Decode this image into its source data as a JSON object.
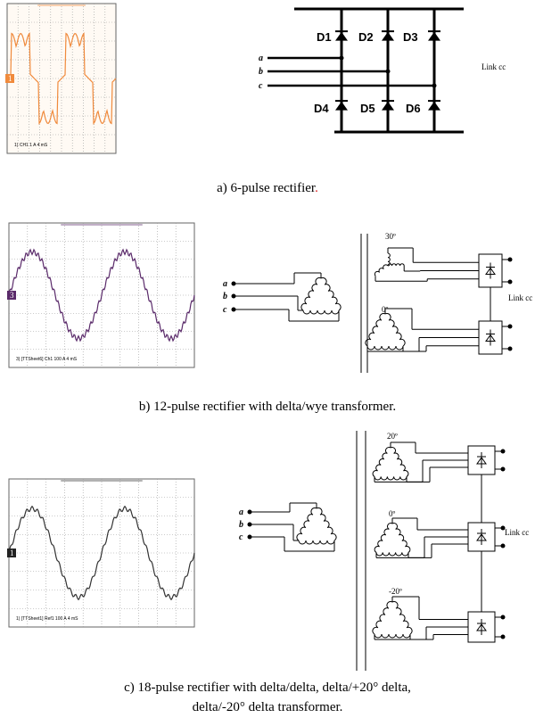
{
  "figure": {
    "panels": [
      {
        "caption": "a) 6-pulse rectifier",
        "caption_end": ".",
        "scope_text": "1) CH1 1 A   4 mS",
        "scope_marker": "1",
        "diodes": [
          "D1",
          "D2",
          "D3",
          "D4",
          "D5",
          "D6"
        ],
        "phases": [
          "a",
          "b",
          "c"
        ],
        "output": "Link cc"
      },
      {
        "caption": "b) 12-pulse rectifier with delta/wye transformer.",
        "scope_text": "3) [TTSheet6] Ch1 100 A   4 mS",
        "scope_marker": "3",
        "phases": [
          "a",
          "b",
          "c"
        ],
        "angles": [
          "30º",
          "0º"
        ],
        "output": "Link cc"
      },
      {
        "caption_lines": [
          "c) 18-pulse rectifier with delta/delta, delta/+20° delta,",
          "delta/-20° delta transformer."
        ],
        "scope_text": "1) [TTSheet1] Ref1 100 A   4 mS",
        "scope_marker": "1",
        "phases": [
          "a",
          "b",
          "c"
        ],
        "angles": [
          "20º",
          "0º",
          "-20º"
        ],
        "output": "Link cc"
      }
    ]
  }
}
